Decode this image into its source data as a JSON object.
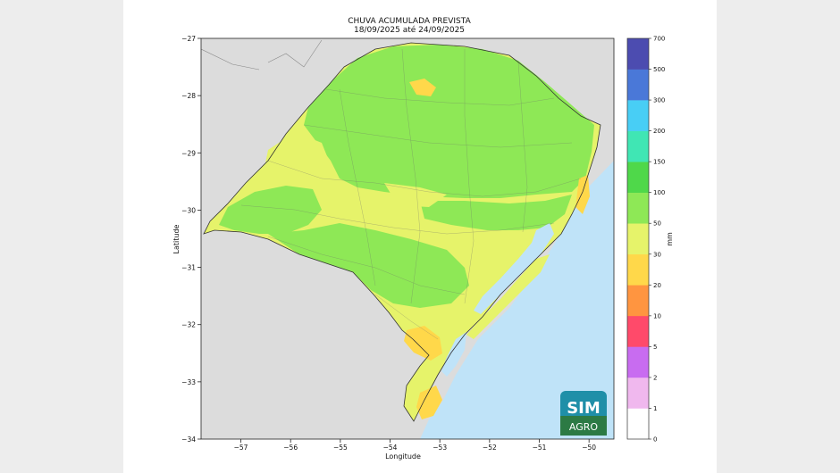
{
  "title": "CHUVA ACUMULADA PREVISTA",
  "subtitle": "18/09/2025 até 24/09/2025",
  "axes": {
    "xlabel": "Longitude",
    "ylabel": "Latitude",
    "xticks": [
      "−57",
      "−56",
      "−55",
      "−54",
      "−53",
      "−52",
      "−51",
      "−50"
    ],
    "yticks": [
      "−27",
      "−28",
      "−29",
      "−30",
      "−31",
      "−32",
      "−33",
      "−34"
    ],
    "xlim": [
      -57.8,
      -49.5
    ],
    "ylim": [
      -34,
      -27
    ]
  },
  "colorbar": {
    "unit_label": "mm",
    "levels": [
      "0",
      "1",
      "2",
      "5",
      "10",
      "20",
      "30",
      "50",
      "100",
      "150",
      "200",
      "300",
      "500",
      "700"
    ],
    "colors": [
      "#ffffff",
      "#f0b8ee",
      "#c86cf0",
      "#ff4a6a",
      "#ff9540",
      "#ffd84a",
      "#e6f36a",
      "#8ee856",
      "#4fd84a",
      "#40e6b4",
      "#48cef5",
      "#4a78d8",
      "#4c4cb0"
    ]
  },
  "map_colors": {
    "ocean": "#bfe3f8",
    "land_outside": "#dcdcdc",
    "range_20_30": "#ffd84a",
    "range_30_50": "#e6f36a",
    "range_50_100": "#8ee856"
  },
  "logo": {
    "line1": "SIM",
    "line2": "AGRO"
  }
}
